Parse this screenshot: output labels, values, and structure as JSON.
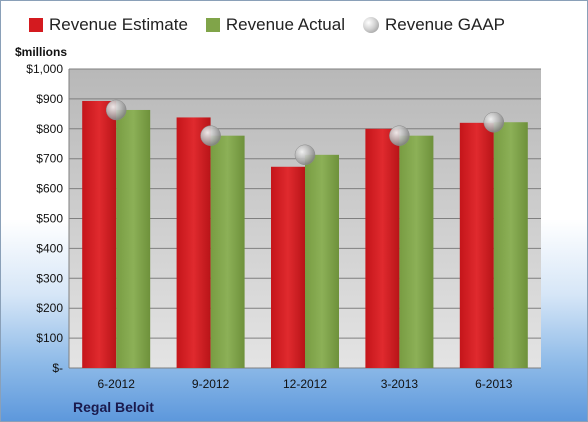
{
  "chart_data": {
    "type": "bar",
    "categories": [
      "6-2012",
      "9-2012",
      "12-2012",
      "3-2013",
      "6-2013"
    ],
    "series": [
      {
        "name": "Revenue Estimate",
        "values": [
          893,
          838,
          673,
          800,
          820
        ],
        "color": "#d41a1f"
      },
      {
        "name": "Revenue Actual",
        "values": [
          863,
          777,
          713,
          777,
          822
        ],
        "color": "#80a449"
      },
      {
        "name": "Revenue GAAP",
        "values": [
          863,
          777,
          713,
          777,
          822
        ],
        "marker": "sphere",
        "color": "#b9b9b9"
      }
    ],
    "ylabel": "$millions",
    "ylim": [
      0,
      1000
    ],
    "yticks": [
      0,
      100,
      200,
      300,
      400,
      500,
      600,
      700,
      800,
      900,
      1000
    ],
    "ytick_labels": [
      "$-",
      "$100",
      "$200",
      "$300",
      "$400",
      "$500",
      "$600",
      "$700",
      "$800",
      "$900",
      "$1,000"
    ],
    "grid": true,
    "legend_position": "top",
    "company": "Regal Beloit"
  }
}
